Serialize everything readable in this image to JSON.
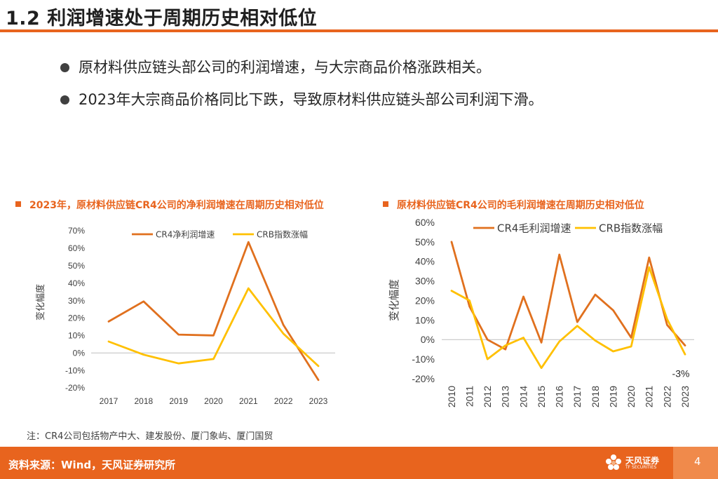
{
  "page": {
    "title": "1.2 利润增速处于周期历史相对低位",
    "bullets": [
      "原材料供应链头部公司的利润增速，与大宗商品价格涨跌相关。",
      "2023年大宗商品价格同比下跌，导致原材料供应链头部公司利润下滑。"
    ],
    "note": "注：CR4公司包括物产中大、建发股份、厦门象屿、厦门国贸",
    "source": "资料来源：Wind，天风证券研究所",
    "page_number": "4",
    "logo_text": "天风证券",
    "logo_subtext": "TF SECURITIES",
    "accent_color": "#e8641e"
  },
  "chart_data": [
    {
      "type": "line",
      "title": "2023年，原材料供应链CR4公司的净利润增速在周期历史相对低位",
      "ylabel": "变化幅度",
      "xlabel": "",
      "categories": [
        "2017",
        "2018",
        "2019",
        "2020",
        "2021",
        "2022",
        "2023"
      ],
      "ylim": [
        -20,
        70
      ],
      "yticks": [
        "-20%",
        "-10%",
        "0%",
        "10%",
        "20%",
        "30%",
        "40%",
        "50%",
        "60%",
        "70%"
      ],
      "series": [
        {
          "name": "CR4净利润增速",
          "color": "#e0701e",
          "values": [
            18,
            29.5,
            10.5,
            10,
            63.5,
            16,
            -15.5
          ]
        },
        {
          "name": "CRB指数涨幅",
          "color": "#ffc000",
          "values": [
            6.5,
            -1,
            -6,
            -3.5,
            37,
            11,
            -7.5
          ]
        }
      ],
      "legend": "top"
    },
    {
      "type": "line",
      "title": "原材料供应链CR4公司的毛利润增速在周期历史相对低位",
      "ylabel": "变化幅度",
      "xlabel": "",
      "categories": [
        "2010",
        "2011",
        "2012",
        "2013",
        "2014",
        "2015",
        "2016",
        "2017",
        "2018",
        "2019",
        "2020",
        "2021",
        "2022",
        "2023"
      ],
      "ylim": [
        -20,
        60
      ],
      "yticks": [
        "-20%",
        "-10%",
        "0%",
        "10%",
        "20%",
        "30%",
        "40%",
        "50%",
        "60%"
      ],
      "series": [
        {
          "name": "CR4毛利润增速",
          "color": "#e0701e",
          "values": [
            50,
            17,
            0,
            -5,
            22,
            -1.5,
            43.5,
            9,
            23,
            15,
            1,
            42,
            7.5,
            -3
          ]
        },
        {
          "name": "CRB指数涨幅",
          "color": "#ffc000",
          "values": [
            25,
            20,
            -10,
            -3,
            1,
            -14.5,
            -1,
            7,
            -0.5,
            -6,
            -3.5,
            37,
            10.5,
            -7.5
          ]
        }
      ],
      "annotations": [
        "-3%"
      ],
      "legend": "top"
    }
  ]
}
